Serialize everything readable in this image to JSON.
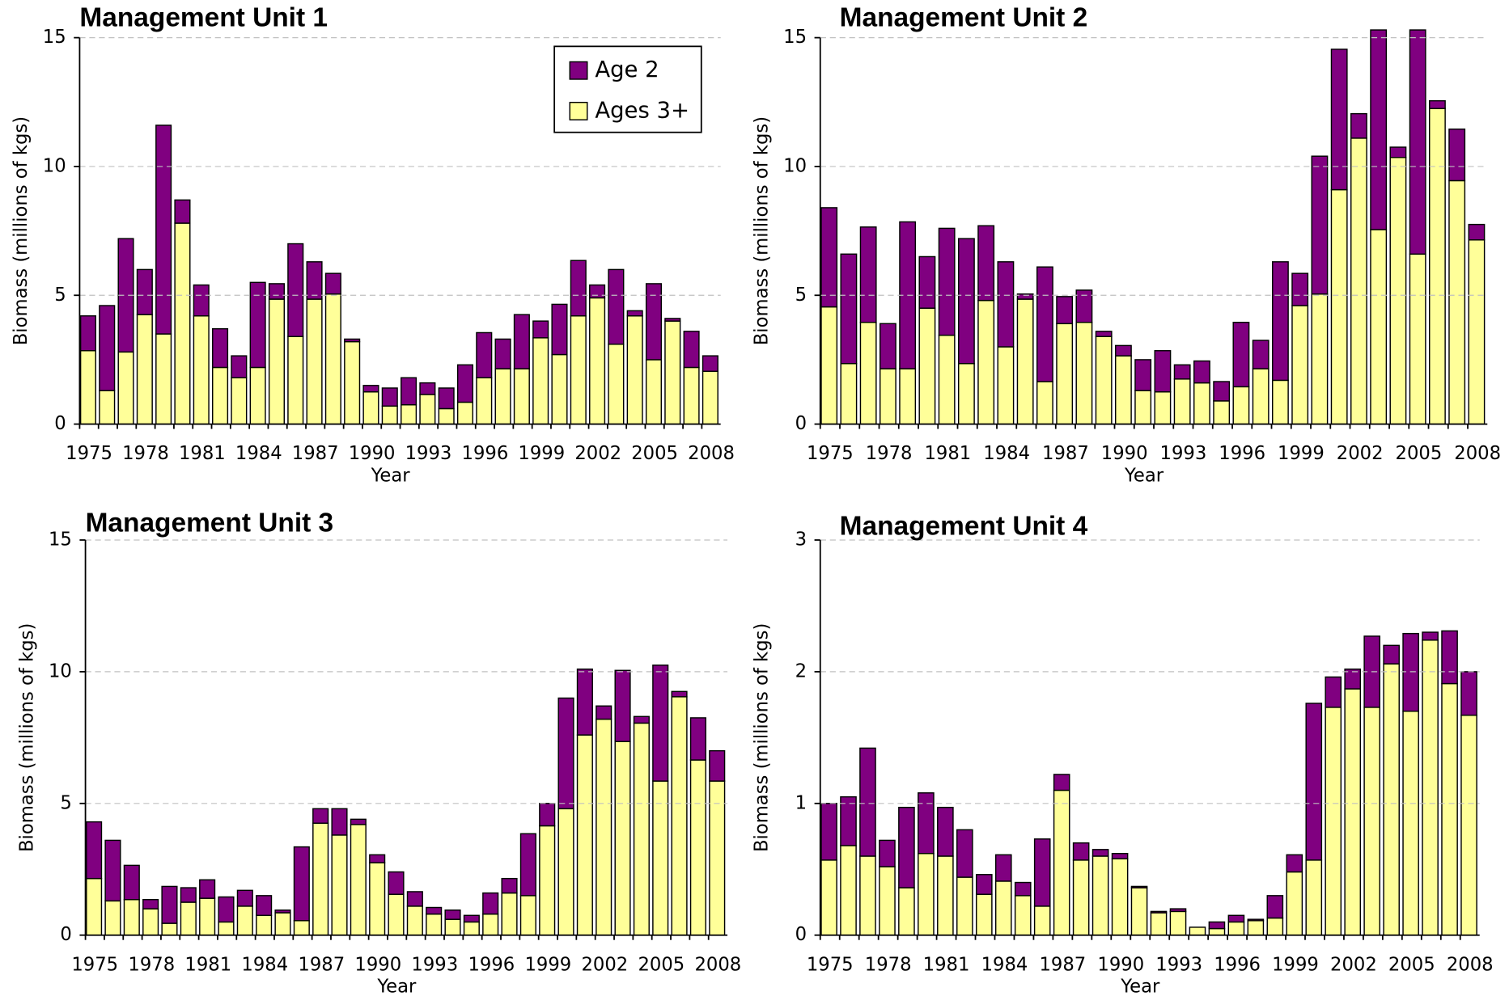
{
  "chart_data": [
    {
      "type": "stacked-bar",
      "title": "Management Unit 1",
      "x_label": "Year",
      "y_label": "Biomass (millions of kgs)",
      "categories": [
        "1975",
        null,
        null,
        "1978",
        null,
        null,
        "1981",
        null,
        null,
        "1984",
        null,
        null,
        "1987",
        null,
        null,
        "1990",
        null,
        null,
        "1993",
        null,
        null,
        "1996",
        null,
        null,
        "1999",
        null,
        null,
        "2002",
        null,
        null,
        "2005",
        null,
        null,
        "2008"
      ],
      "series": [
        {
          "name": "Ages 3+",
          "color": "#ffff99",
          "values": [
            2.85,
            1.3,
            2.8,
            4.25,
            3.5,
            7.8,
            4.2,
            2.2,
            1.8,
            2.2,
            4.85,
            3.4,
            4.85,
            5.05,
            3.2,
            1.25,
            0.7,
            0.75,
            1.15,
            0.6,
            0.85,
            1.8,
            2.15,
            2.15,
            3.35,
            2.7,
            4.2,
            4.9,
            3.1,
            4.2,
            2.5,
            4.0,
            2.2,
            2.05
          ]
        },
        {
          "name": "Age 2",
          "color": "#800080",
          "values": [
            1.35,
            3.3,
            4.4,
            1.75,
            8.1,
            0.9,
            1.2,
            1.5,
            0.85,
            3.3,
            0.6,
            3.6,
            1.45,
            0.8,
            0.1,
            0.25,
            0.7,
            1.05,
            0.45,
            0.8,
            1.45,
            1.75,
            1.15,
            2.1,
            0.65,
            1.95,
            2.15,
            0.5,
            2.9,
            0.2,
            2.95,
            0.1,
            1.4,
            0.6
          ]
        }
      ],
      "ylim": [
        0,
        15
      ],
      "yticks": [
        0,
        5,
        10,
        15
      ],
      "grid": true,
      "legend": "top-right"
    },
    {
      "type": "stacked-bar",
      "title": "Management Unit 2",
      "x_label": "Year",
      "y_label": "Biomass (millions of kgs)",
      "categories": [
        "1975",
        null,
        null,
        "1978",
        null,
        null,
        "1981",
        null,
        null,
        "1984",
        null,
        null,
        "1987",
        null,
        null,
        "1990",
        null,
        null,
        "1993",
        null,
        null,
        "1996",
        null,
        null,
        "1999",
        null,
        null,
        "2002",
        null,
        null,
        "2005",
        null,
        null,
        "2008"
      ],
      "series": [
        {
          "color": "#ffff99",
          "values": [
            4.55,
            2.35,
            3.95,
            2.15,
            2.15,
            4.5,
            3.45,
            2.35,
            4.8,
            3.0,
            4.85,
            1.65,
            3.9,
            3.95,
            3.4,
            2.65,
            1.3,
            1.25,
            1.75,
            1.6,
            0.9,
            1.45,
            2.15,
            1.7,
            4.6,
            5.05,
            9.1,
            11.1,
            7.55,
            10.35,
            6.6,
            12.25,
            9.45,
            7.15
          ]
        },
        {
          "color": "#800080",
          "values": [
            3.85,
            4.25,
            3.7,
            1.75,
            5.7,
            2.0,
            4.15,
            4.85,
            2.9,
            3.3,
            0.2,
            4.45,
            1.05,
            1.25,
            0.2,
            0.4,
            1.2,
            1.6,
            0.55,
            0.85,
            0.75,
            2.5,
            1.1,
            4.6,
            1.25,
            5.35,
            5.45,
            0.95,
            7.75,
            0.4,
            8.7,
            0.3,
            2.0,
            0.6
          ]
        }
      ],
      "ylim": [
        0,
        15
      ],
      "yticks": [
        0,
        5,
        10,
        15
      ],
      "grid": true
    },
    {
      "type": "stacked-bar",
      "title": "Management Unit 3",
      "x_label": "Year",
      "y_label": "Biomass (millions of kgs)",
      "categories": [
        "1975",
        null,
        null,
        "1978",
        null,
        null,
        "1981",
        null,
        null,
        "1984",
        null,
        null,
        "1987",
        null,
        null,
        "1990",
        null,
        null,
        "1993",
        null,
        null,
        "1996",
        null,
        null,
        "1999",
        null,
        null,
        "2002",
        null,
        null,
        "2005",
        null,
        null,
        "2008"
      ],
      "series": [
        {
          "color": "#ffff99",
          "values": [
            2.15,
            1.3,
            1.35,
            1.0,
            0.45,
            1.25,
            1.4,
            0.5,
            1.1,
            0.75,
            0.85,
            0.55,
            4.25,
            3.8,
            4.2,
            2.75,
            1.55,
            1.1,
            0.8,
            0.6,
            0.5,
            0.8,
            1.6,
            1.5,
            4.15,
            4.8,
            7.6,
            8.2,
            7.35,
            8.05,
            5.85,
            9.05,
            6.65,
            5.85
          ]
        },
        {
          "color": "#800080",
          "values": [
            2.15,
            2.3,
            1.3,
            0.35,
            1.4,
            0.55,
            0.7,
            0.95,
            0.6,
            0.75,
            0.1,
            2.8,
            0.55,
            1.0,
            0.2,
            0.3,
            0.85,
            0.55,
            0.25,
            0.35,
            0.25,
            0.8,
            0.55,
            2.35,
            0.85,
            4.2,
            2.5,
            0.5,
            2.7,
            0.25,
            4.4,
            0.2,
            1.6,
            1.15
          ]
        }
      ],
      "ylim": [
        0,
        15
      ],
      "yticks": [
        0,
        5,
        10,
        15
      ],
      "grid": true
    },
    {
      "type": "stacked-bar",
      "title": "Management Unit 4",
      "x_label": "Year",
      "y_label": "Biomass (millions of kgs)",
      "categories": [
        "1975",
        null,
        null,
        "1978",
        null,
        null,
        "1981",
        null,
        null,
        "1984",
        null,
        null,
        "1987",
        null,
        null,
        "1990",
        null,
        null,
        "1993",
        null,
        null,
        "1996",
        null,
        null,
        "1999",
        null,
        null,
        "2002",
        null,
        null,
        "2005",
        null,
        null,
        "2008"
      ],
      "series": [
        {
          "color": "#ffff99",
          "values": [
            0.57,
            0.68,
            0.6,
            0.52,
            0.36,
            0.62,
            0.6,
            0.44,
            0.31,
            0.41,
            0.3,
            0.22,
            1.1,
            0.57,
            0.6,
            0.58,
            0.36,
            0.17,
            0.18,
            0.06,
            0.05,
            0.1,
            0.11,
            0.13,
            0.48,
            0.57,
            1.73,
            1.87,
            1.73,
            2.06,
            1.7,
            2.24,
            1.91,
            1.67
          ]
        },
        {
          "color": "#800080",
          "values": [
            0.43,
            0.37,
            0.82,
            0.2,
            0.61,
            0.46,
            0.37,
            0.36,
            0.15,
            0.2,
            0.1,
            0.51,
            0.12,
            0.13,
            0.05,
            0.04,
            0.01,
            0.01,
            0.02,
            0,
            0.05,
            0.05,
            0.01,
            0.17,
            0.13,
            1.19,
            0.23,
            0.15,
            0.54,
            0.14,
            0.59,
            0.06,
            0.4,
            0.33
          ]
        }
      ],
      "ylim": [
        0,
        3
      ],
      "yticks": [
        0,
        1,
        2,
        3
      ],
      "grid": true
    }
  ]
}
